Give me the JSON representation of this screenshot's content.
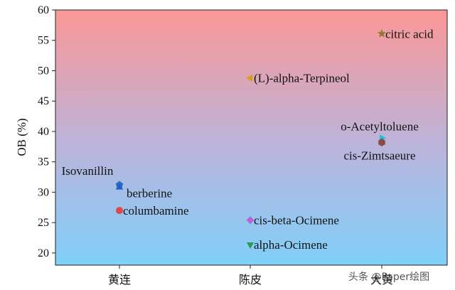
{
  "chart_data": {
    "type": "scatter",
    "title": "",
    "xlabel": "",
    "ylabel": "OB (%)",
    "categories": [
      "黄连",
      "陈皮",
      "大黄"
    ],
    "ylim": [
      18,
      60
    ],
    "yticks": [
      20,
      25,
      30,
      35,
      40,
      45,
      50,
      55,
      60
    ],
    "grid": false,
    "background": "vertical gradient: red-pink (top) to light blue (bottom)",
    "points": [
      {
        "name": "Isovanillin",
        "category": "黄连",
        "y": 31.2,
        "marker": "pentagon",
        "color": "#2a68c8",
        "label_pos": "above-left"
      },
      {
        "name": "berberine",
        "category": "黄连",
        "y": 30.8,
        "marker": "triangle-up",
        "color": "#1f5fbf",
        "label_pos": "right-below"
      },
      {
        "name": "columbamine",
        "category": "黄连",
        "y": 27.0,
        "marker": "circle",
        "color": "#e0474c",
        "label_pos": "right"
      },
      {
        "name": "(L)-alpha-Terpineol",
        "category": "陈皮",
        "y": 48.8,
        "marker": "triangle-left",
        "color": "#d4a017",
        "label_pos": "right"
      },
      {
        "name": "cis-beta-Ocimene",
        "category": "陈皮",
        "y": 25.4,
        "marker": "diamond",
        "color": "#b565d8",
        "label_pos": "right"
      },
      {
        "name": "alpha-Ocimene",
        "category": "陈皮",
        "y": 21.4,
        "marker": "triangle-down",
        "color": "#2e9a5a",
        "label_pos": "right"
      },
      {
        "name": "citric acid",
        "category": "大黄",
        "y": 56.1,
        "marker": "star",
        "color": "#8c7a3a",
        "label_pos": "right"
      },
      {
        "name": "o-Acetyltoluene",
        "category": "大黄",
        "y": 38.9,
        "marker": "triangle-right",
        "color": "#22c0d8",
        "label_pos": "above-left"
      },
      {
        "name": "cis-Zimtsaeure",
        "category": "大黄",
        "y": 38.2,
        "marker": "hexagon",
        "color": "#8b4a4a",
        "label_pos": "below-left"
      }
    ]
  },
  "watermark": "头条 @Paper绘图"
}
